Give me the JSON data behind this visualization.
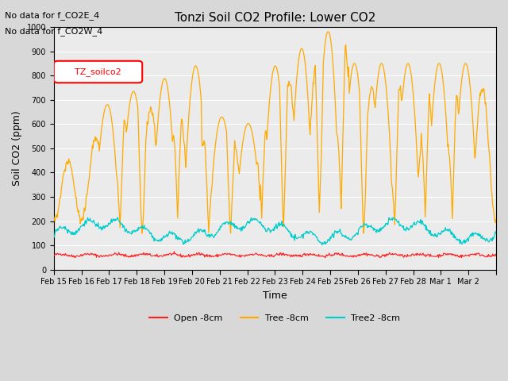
{
  "title": "Tonzi Soil CO2 Profile: Lower CO2",
  "xlabel": "Time",
  "ylabel": "Soil CO2 (ppm)",
  "ylim": [
    0,
    1000
  ],
  "annotation1": "No data for f_CO2E_4",
  "annotation2": "No data for f_CO2W_4",
  "legend_box_label": "TZ_soilco2",
  "legend_labels": [
    "Open -8cm",
    "Tree -8cm",
    "Tree2 -8cm"
  ],
  "legend_colors": [
    "#ff2020",
    "#ffaa00",
    "#00cccc"
  ],
  "bg_color": "#d8d8d8",
  "plot_bg": "#ebebeb",
  "grid_color": "#ffffff",
  "tick_dates": [
    "Feb 15",
    "Feb 16",
    "Feb 17",
    "Feb 18",
    "Feb 19",
    "Feb 20",
    "Feb 21",
    "Feb 22",
    "Feb 23",
    "Feb 24",
    "Feb 25",
    "Feb 26",
    "Feb 27",
    "Feb 28",
    "Mar 1",
    "Mar 2"
  ]
}
